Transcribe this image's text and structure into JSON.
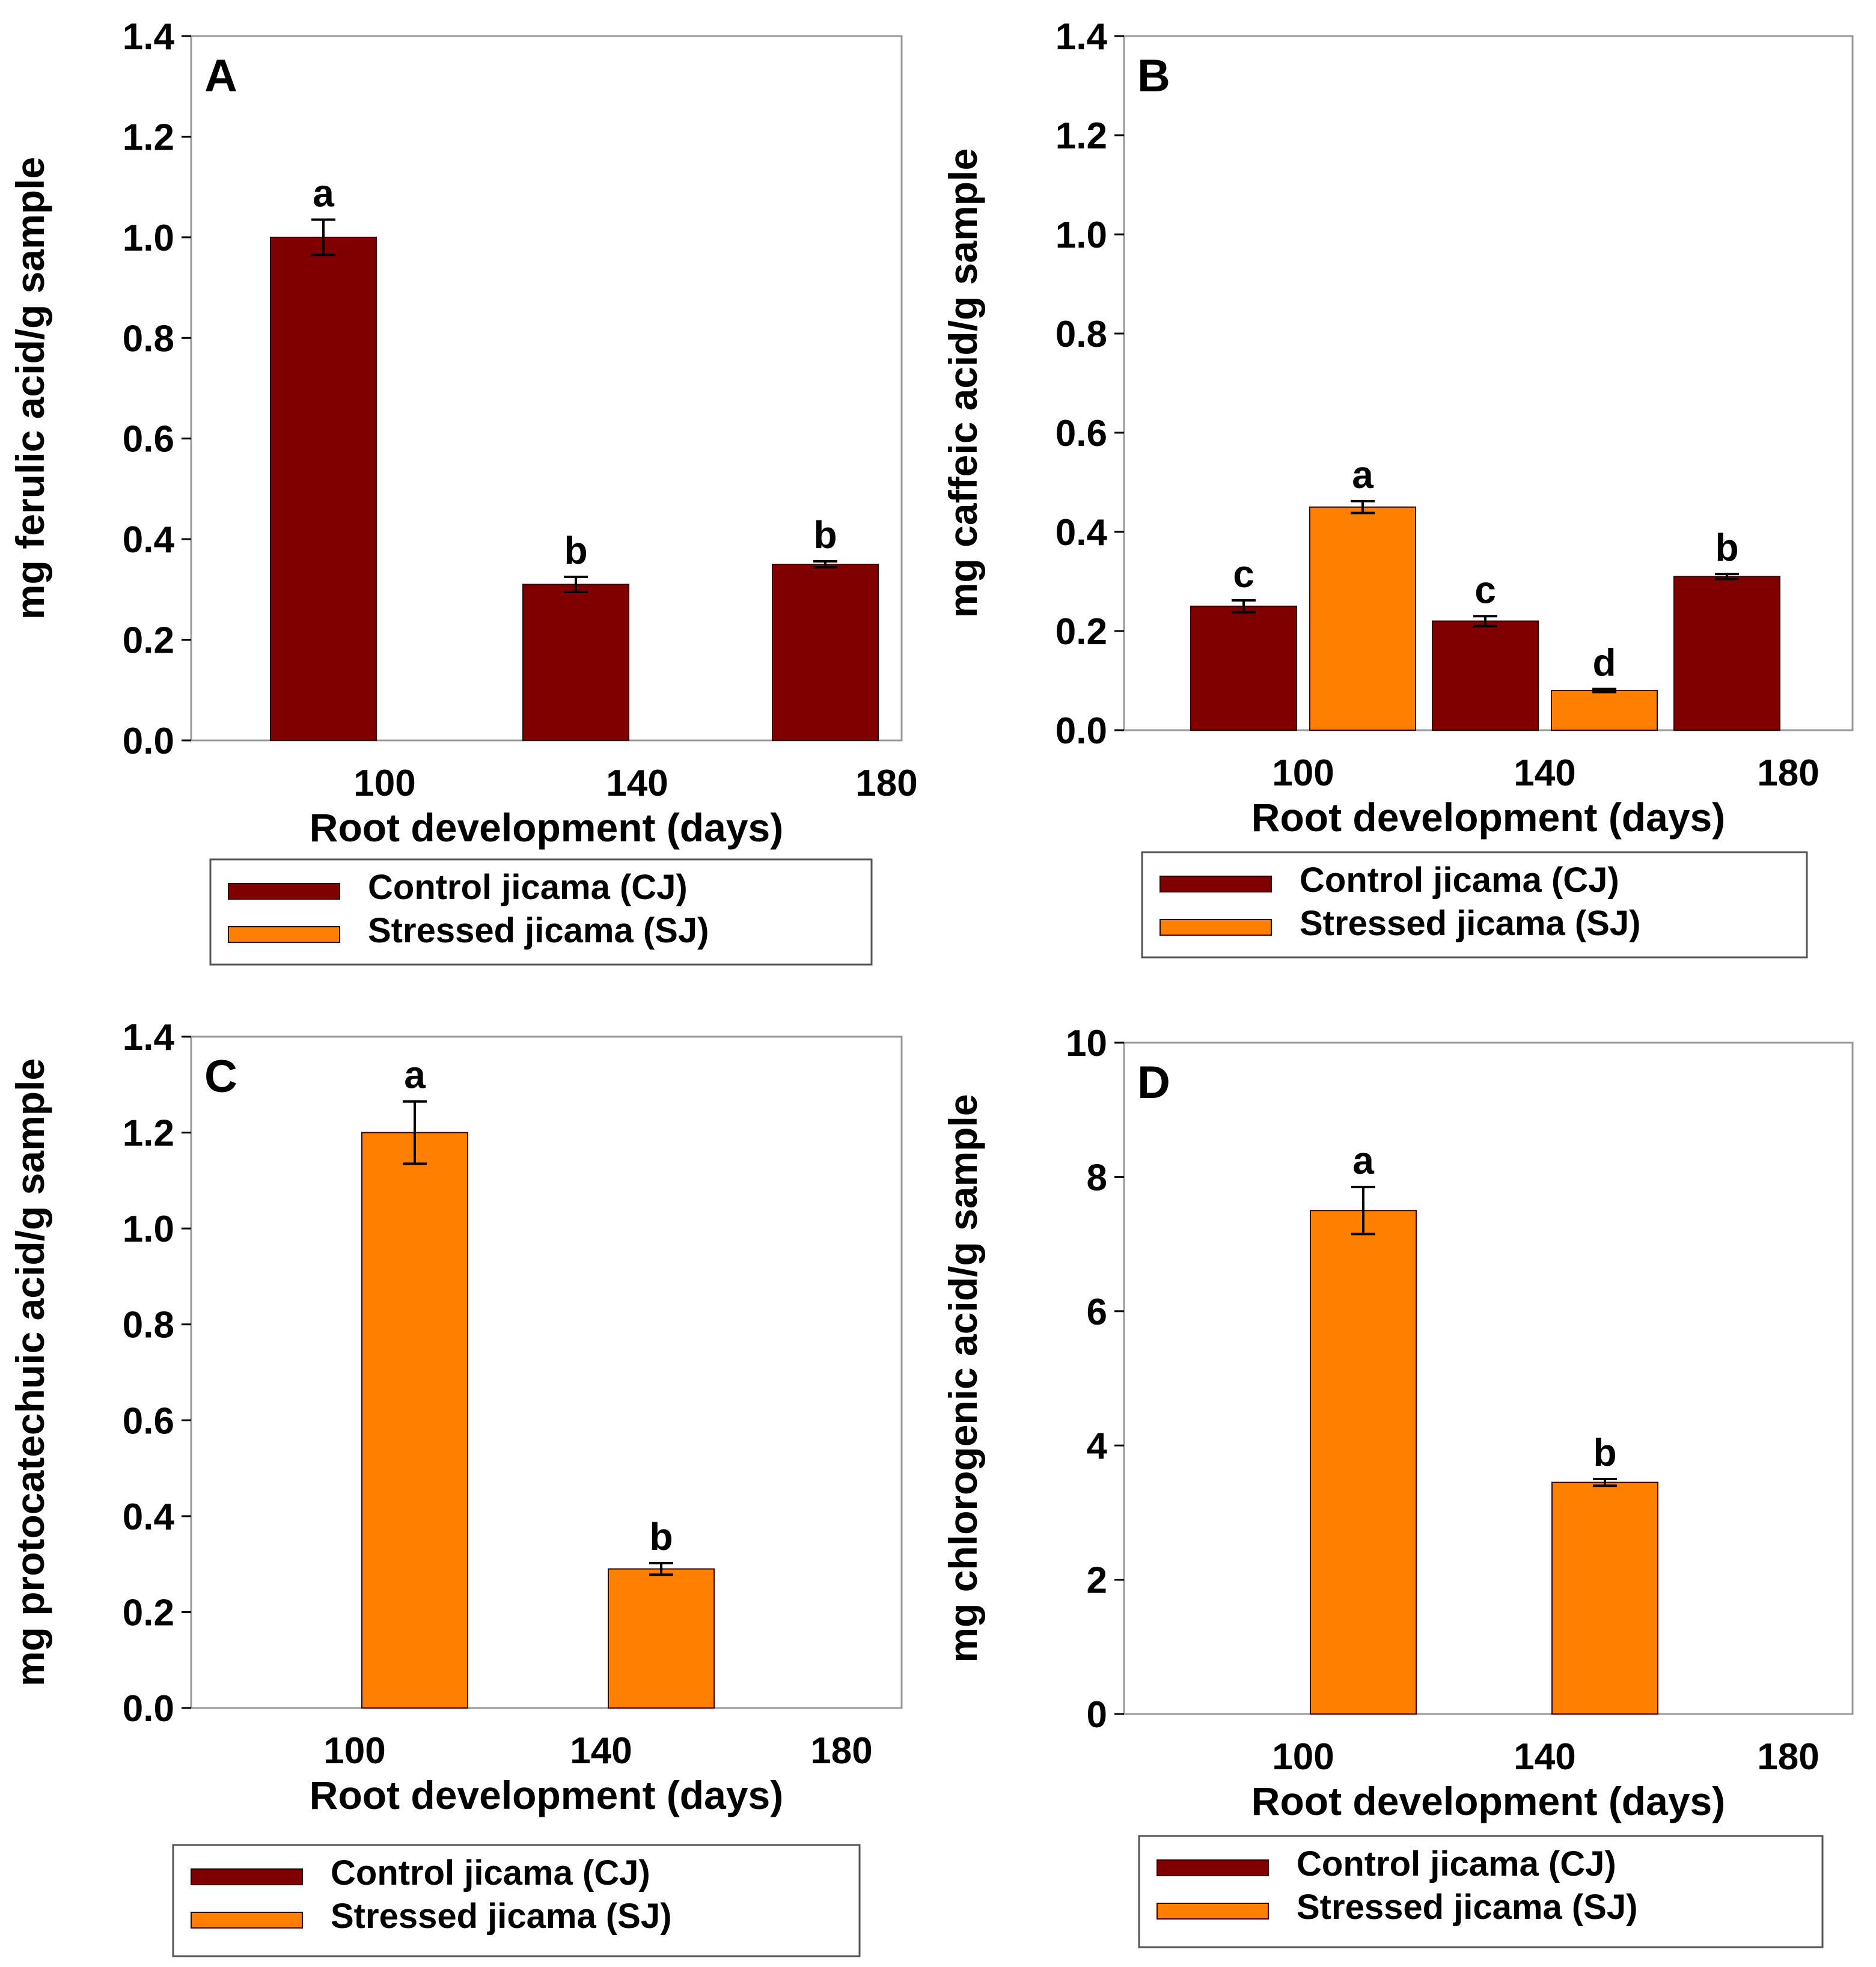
{
  "legend": {
    "items": [
      {
        "label": "Control jicama (CJ)",
        "color": "#800000",
        "series": "CJ"
      },
      {
        "label": "Stressed jicama (SJ)",
        "color": "#FF8000",
        "series": "SJ"
      }
    ]
  },
  "chart_data": [
    {
      "panel": "A",
      "type": "bar",
      "title": "",
      "xlabel": "Root development (days)",
      "ylabel": "mg ferulic acid/g sample",
      "categories": [
        "100",
        "140",
        "180"
      ],
      "ylim": [
        0,
        1.4
      ],
      "yticks": [
        "0.0",
        "0.2",
        "0.4",
        "0.6",
        "0.8",
        "1.0",
        "1.2",
        "1.4"
      ],
      "series": [
        {
          "name": "Control jicama (CJ)",
          "color": "#800000",
          "values": [
            1.0,
            0.31,
            0.35
          ],
          "errors": [
            0.035,
            0.015,
            0.006
          ],
          "letters": [
            "a",
            "b",
            "b"
          ]
        },
        {
          "name": "Stressed jicama (SJ)",
          "color": "#FF8000",
          "values": [
            null,
            null,
            null
          ],
          "errors": [
            null,
            null,
            null
          ],
          "letters": [
            null,
            null,
            null
          ]
        }
      ]
    },
    {
      "panel": "B",
      "type": "bar",
      "title": "",
      "xlabel": "Root development (days)",
      "ylabel": "mg caffeic acid/g sample",
      "categories": [
        "100",
        "140",
        "180"
      ],
      "ylim": [
        0,
        1.4
      ],
      "yticks": [
        "0.0",
        "0.2",
        "0.4",
        "0.6",
        "0.8",
        "1.0",
        "1.2",
        "1.4"
      ],
      "series": [
        {
          "name": "Control jicama (CJ)",
          "color": "#800000",
          "values": [
            0.25,
            0.22,
            0.31
          ],
          "errors": [
            0.012,
            0.01,
            0.005
          ],
          "letters": [
            "c",
            "c",
            "b"
          ]
        },
        {
          "name": "Stressed jicama (SJ)",
          "color": "#FF8000",
          "values": [
            0.45,
            0.08,
            null
          ],
          "errors": [
            0.012,
            0.003,
            null
          ],
          "letters": [
            "a",
            "d",
            null
          ]
        }
      ]
    },
    {
      "panel": "C",
      "type": "bar",
      "title": "",
      "xlabel": "Root development (days)",
      "ylabel": "mg protocatechuic acid/g sample",
      "categories": [
        "100",
        "140",
        "180"
      ],
      "ylim": [
        0,
        1.4
      ],
      "yticks": [
        "0.0",
        "0.2",
        "0.4",
        "0.6",
        "0.8",
        "1.0",
        "1.2",
        "1.4"
      ],
      "series": [
        {
          "name": "Control jicama (CJ)",
          "color": "#800000",
          "values": [
            null,
            null,
            null
          ],
          "errors": [
            null,
            null,
            null
          ],
          "letters": [
            null,
            null,
            null
          ]
        },
        {
          "name": "Stressed jicama (SJ)",
          "color": "#FF8000",
          "values": [
            1.2,
            0.29,
            null
          ],
          "errors": [
            0.065,
            0.012,
            null
          ],
          "letters": [
            "a",
            "b",
            null
          ]
        }
      ]
    },
    {
      "panel": "D",
      "type": "bar",
      "title": "",
      "xlabel": "Root development (days)",
      "ylabel": "mg chlorogenic acid/g sample",
      "categories": [
        "100",
        "140",
        "180"
      ],
      "ylim": [
        0,
        10
      ],
      "yticks": [
        "0",
        "2",
        "4",
        "6",
        "8",
        "10"
      ],
      "series": [
        {
          "name": "Control jicama (CJ)",
          "color": "#800000",
          "values": [
            null,
            null,
            null
          ],
          "errors": [
            null,
            null,
            null
          ],
          "letters": [
            null,
            null,
            null
          ]
        },
        {
          "name": "Stressed jicama (SJ)",
          "color": "#FF8000",
          "values": [
            7.5,
            3.45,
            null
          ],
          "errors": [
            0.35,
            0.05,
            null
          ],
          "letters": [
            "a",
            "b",
            null
          ]
        }
      ]
    }
  ]
}
